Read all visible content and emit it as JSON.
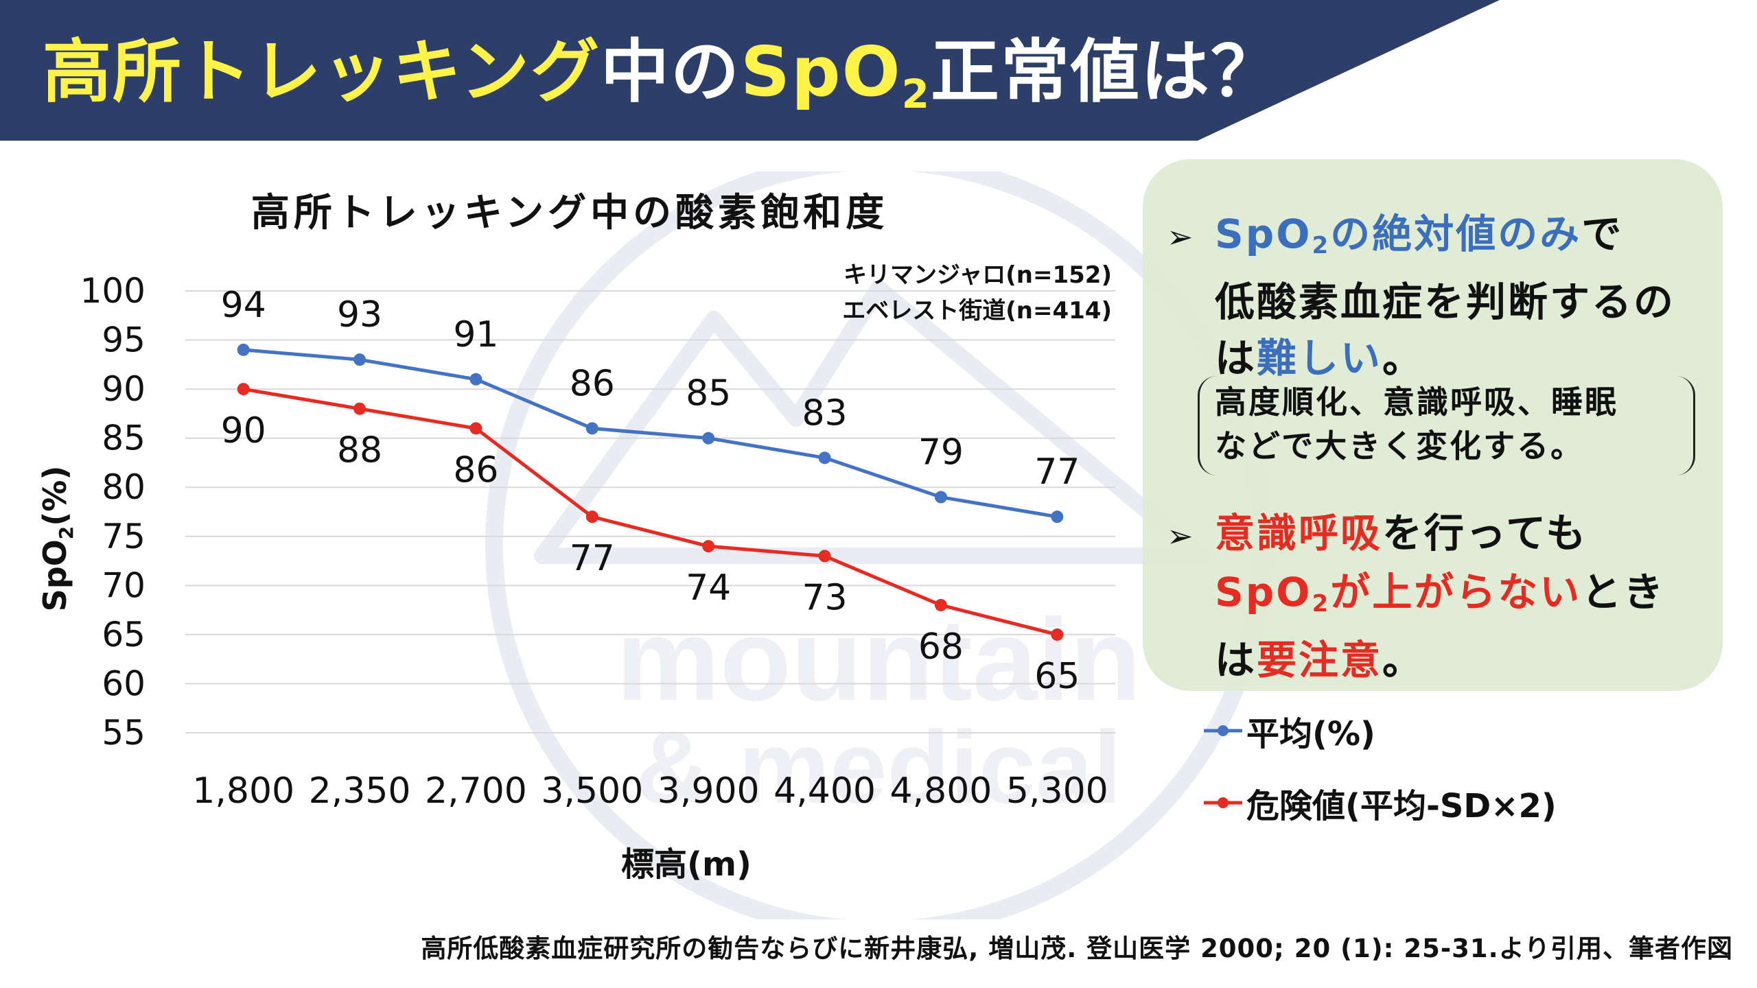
{
  "title": {
    "part1": "高所トレッキング",
    "part2": "中の",
    "part3": "SpO",
    "sub": "2",
    "part4": "正常値は？"
  },
  "watermark": {
    "text1": "mountain",
    "text2": "& medical"
  },
  "panel": {
    "point1": {
      "a": "SpO",
      "a_sub": "2",
      "b": "の絶対値のみ",
      "c": "で",
      "d": "低酸素血症を判断するの",
      "e": "は",
      "f": "難しい",
      "g": "。"
    },
    "note": {
      "line1": "高度順化、意識呼吸、睡眠",
      "line2": "などで大きく変化する。"
    },
    "point2": {
      "a": "意識呼吸",
      "b": "を行っても",
      "c": "SpO",
      "c_sub": "2",
      "d": "が上がらない",
      "e": "とき",
      "f": "は",
      "g": "要注意",
      "h": "。"
    }
  },
  "citation": "高所低酸素血症研究所の勧告ならびに新井康弘, 増山茂. 登山医学 2000; 20 (1): 25-31.より引用、筆者作図",
  "chart_data": {
    "type": "line",
    "title": "高所トレッキング中の酸素飽和度",
    "notes": [
      "キリマンジャロ(n=152)",
      "エベレスト街道(n=414)"
    ],
    "xlabel": "標高(m)",
    "ylabel": {
      "main": "SpO",
      "sub": "2",
      "unit": "(%)"
    },
    "categories": [
      "1,800",
      "2,350",
      "2,700",
      "3,500",
      "3,900",
      "4,400",
      "4,800",
      "5,300"
    ],
    "y_ticks": [
      100,
      95,
      90,
      85,
      80,
      75,
      70,
      65,
      60,
      55
    ],
    "ylim": [
      55,
      100
    ],
    "grid": true,
    "legend_position": "right",
    "series": [
      {
        "name": "平均(%)",
        "color": "#4472c4",
        "values": [
          94,
          93,
          91,
          86,
          85,
          83,
          79,
          77
        ]
      },
      {
        "name": "危険値(平均-SD×2)",
        "color": "#e52b22",
        "values": [
          90,
          88,
          86,
          77,
          74,
          73,
          68,
          65
        ]
      }
    ]
  }
}
